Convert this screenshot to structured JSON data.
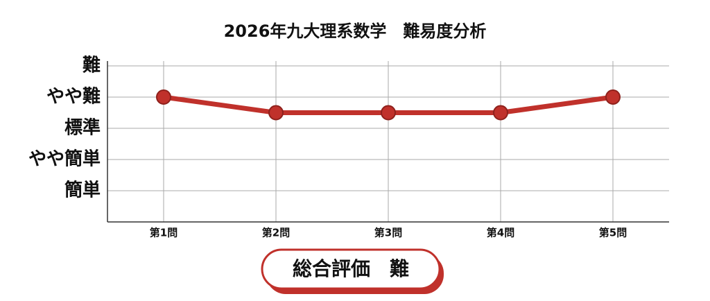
{
  "chart_data": {
    "type": "line",
    "title": "2026年九大理系数学　難易度分析",
    "categories": [
      "第1問",
      "第2問",
      "第3問",
      "第4問",
      "第5問"
    ],
    "values": [
      4,
      3.5,
      3.5,
      3.5,
      4
    ],
    "color": "#c0312b",
    "ylim": [
      0,
      5
    ],
    "yticks": [
      {
        "value": 1,
        "label": "簡単"
      },
      {
        "value": 2,
        "label": "やや簡単"
      },
      {
        "value": 3,
        "label": "標準"
      },
      {
        "value": 4,
        "label": "やや難"
      },
      {
        "value": 5,
        "label": "難"
      }
    ],
    "grid": true,
    "annotation": "総合評価　難"
  }
}
